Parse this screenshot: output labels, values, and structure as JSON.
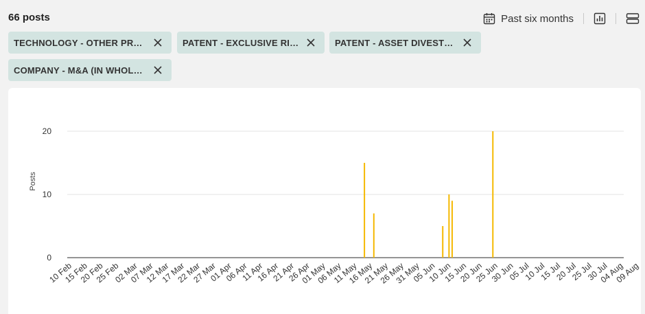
{
  "header": {
    "post_count": "66 posts",
    "date_range_label": "Past six months",
    "calendar_icon": "calendar-icon",
    "chart_toggle_icon": "bar-chart-icon",
    "list_toggle_icon": "stacked-list-icon"
  },
  "filters": [
    {
      "label": "TECHNOLOGY - OTHER PROP..."
    },
    {
      "label": "PATENT - EXCLUSIVE RIGHTS"
    },
    {
      "label": "PATENT - ASSET DIVESTMENT"
    },
    {
      "label": "COMPANY - M&A (IN WHOLE O..."
    }
  ],
  "colors": {
    "bar": "#f5b800",
    "chip_bg": "#d3e4e1"
  },
  "chart_data": {
    "type": "bar",
    "ylabel": "Posts",
    "xlabel": "",
    "ylim": [
      0,
      20
    ],
    "y_ticks": [
      0,
      10,
      20
    ],
    "grid": true,
    "x_tick_labels": [
      "10 Feb",
      "15 Feb",
      "20 Feb",
      "25 Feb",
      "02 Mar",
      "07 Mar",
      "12 Mar",
      "17 Mar",
      "22 Mar",
      "27 Mar",
      "01 Apr",
      "06 Apr",
      "11 Apr",
      "16 Apr",
      "21 Apr",
      "26 Apr",
      "01 May",
      "06 May",
      "11 May",
      "16 May",
      "21 May",
      "26 May",
      "31 May",
      "05 Jun",
      "10 Jun",
      "15 Jun",
      "20 Jun",
      "25 Jun",
      "30 Jun",
      "05 Jul",
      "10 Jul",
      "15 Jul",
      "20 Jul",
      "25 Jul",
      "30 Jul",
      "04 Aug",
      "09 Aug"
    ],
    "x_range": [
      "10 Feb",
      "09 Aug"
    ],
    "series": [
      {
        "points": [
          {
            "date": "14 May",
            "value": 15
          },
          {
            "date": "17 May",
            "value": 7
          },
          {
            "date": "08 Jun",
            "value": 5
          },
          {
            "date": "10 Jun",
            "value": 10
          },
          {
            "date": "11 Jun",
            "value": 9
          },
          {
            "date": "24 Jun",
            "value": 20
          }
        ]
      }
    ]
  }
}
